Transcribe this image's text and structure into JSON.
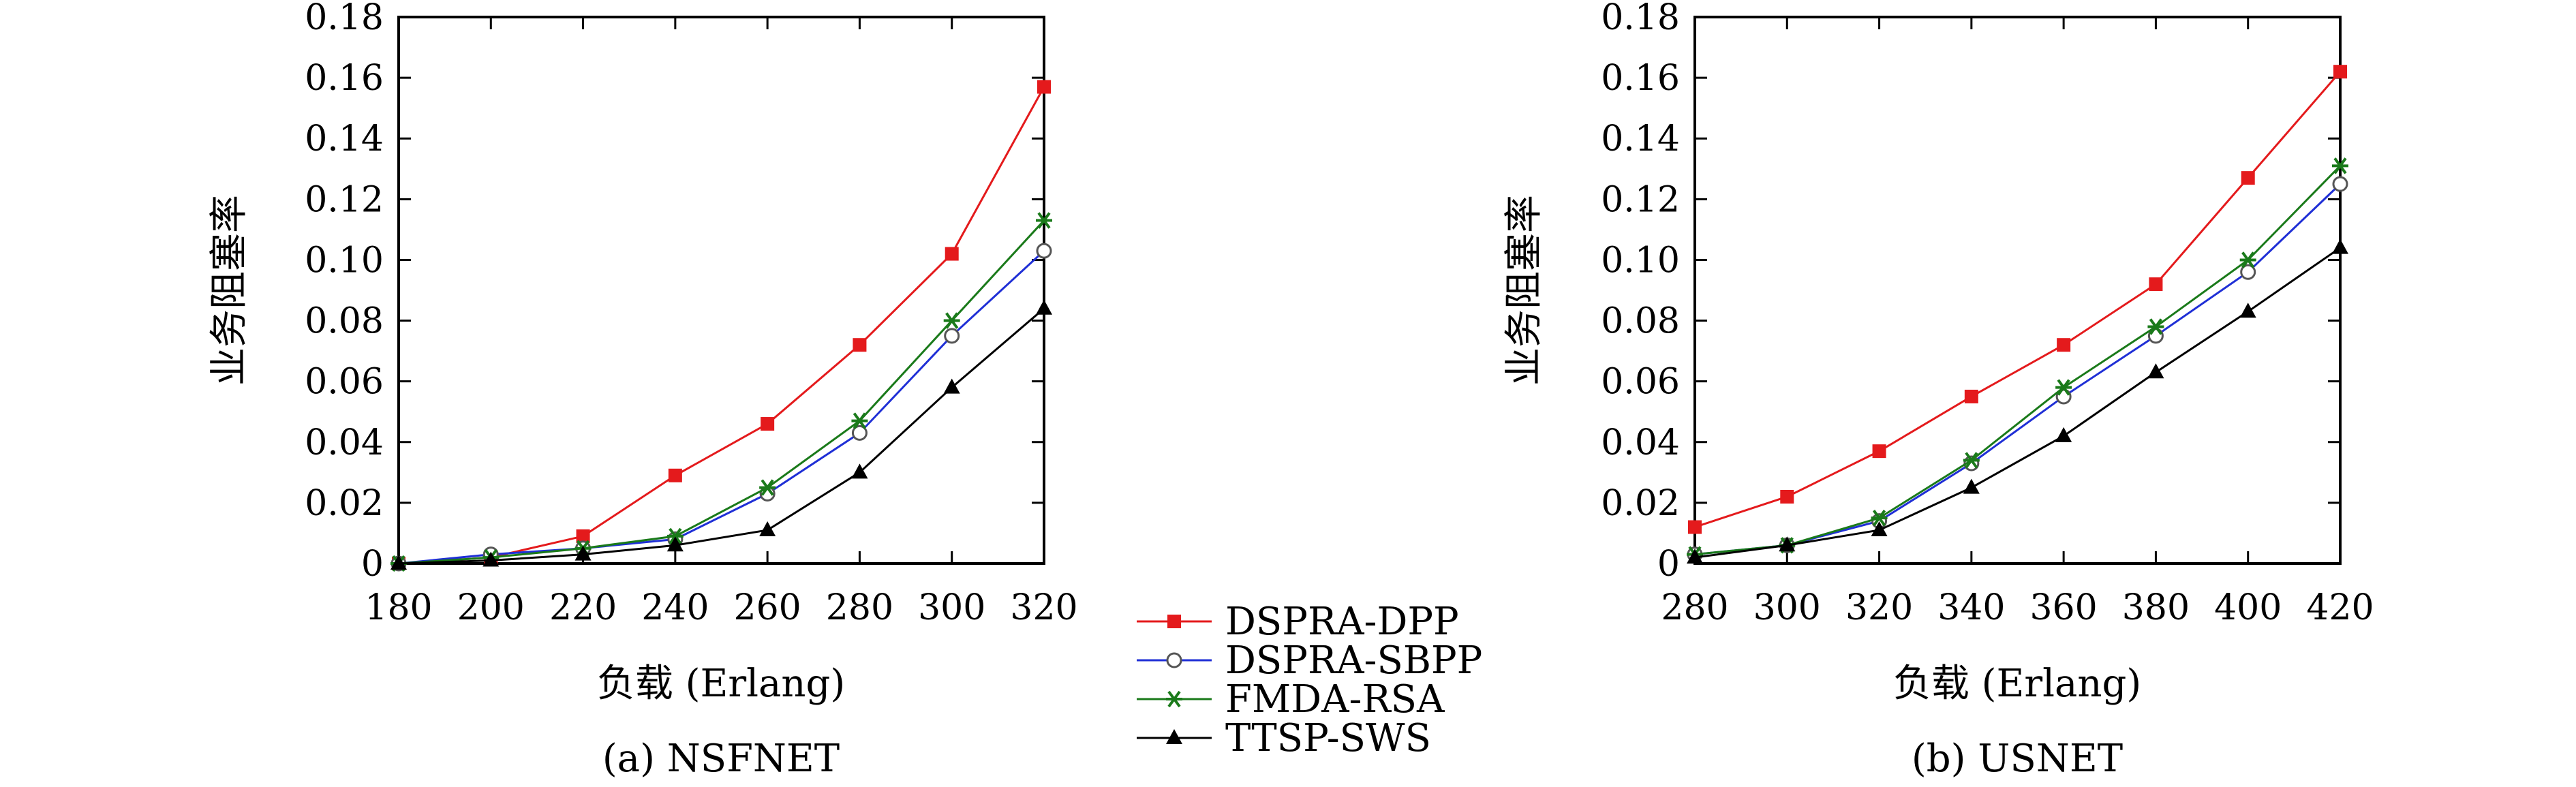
{
  "chart_data": [
    {
      "type": "line",
      "caption": "(a) NSFNET",
      "xlabel": "负载 (Erlang)",
      "ylabel": "业务阻塞率",
      "x": [
        180,
        200,
        220,
        240,
        260,
        280,
        300,
        320
      ],
      "xlim": [
        180,
        320
      ],
      "ylim": [
        0,
        0.18
      ],
      "yticks": [
        "0",
        "0.02",
        "0.04",
        "0.06",
        "0.08",
        "0.10",
        "0.12",
        "0.14",
        "0.16",
        "0.18"
      ],
      "ytick_values": [
        0,
        0.02,
        0.04,
        0.06,
        0.08,
        0.1,
        0.12,
        0.14,
        0.16,
        0.18
      ],
      "xticks": [
        "180",
        "200",
        "220",
        "240",
        "260",
        "280",
        "300",
        "320"
      ],
      "series": [
        {
          "name": "DSPRA-DPP",
          "values": [
            0,
            0.002,
            0.009,
            0.029,
            0.046,
            0.072,
            0.102,
            0.157
          ]
        },
        {
          "name": "DSPRA-SBPP",
          "values": [
            0,
            0.003,
            0.005,
            0.008,
            0.023,
            0.043,
            0.075,
            0.103
          ]
        },
        {
          "name": "FMDA-RSA",
          "values": [
            0,
            0.002,
            0.005,
            0.009,
            0.025,
            0.047,
            0.08,
            0.113
          ]
        },
        {
          "name": "TTSP-SWS",
          "values": [
            0,
            0.001,
            0.003,
            0.006,
            0.011,
            0.03,
            0.058,
            0.084
          ]
        }
      ]
    },
    {
      "type": "line",
      "caption": "(b) USNET",
      "xlabel": "负载 (Erlang)",
      "ylabel": "业务阻塞率",
      "x": [
        280,
        300,
        320,
        340,
        360,
        380,
        400,
        420
      ],
      "xlim": [
        280,
        420
      ],
      "ylim": [
        0,
        0.18
      ],
      "yticks": [
        "0",
        "0.02",
        "0.04",
        "0.06",
        "0.08",
        "0.10",
        "0.12",
        "0.14",
        "0.16",
        "0.18"
      ],
      "ytick_values": [
        0,
        0.02,
        0.04,
        0.06,
        0.08,
        0.1,
        0.12,
        0.14,
        0.16,
        0.18
      ],
      "xticks": [
        "280",
        "300",
        "320",
        "340",
        "360",
        "380",
        "400",
        "420"
      ],
      "series": [
        {
          "name": "DSPRA-DPP",
          "values": [
            0.012,
            0.022,
            0.037,
            0.055,
            0.072,
            0.092,
            0.127,
            0.162
          ]
        },
        {
          "name": "DSPRA-SBPP",
          "values": [
            0.003,
            0.006,
            0.014,
            0.033,
            0.055,
            0.075,
            0.096,
            0.125
          ]
        },
        {
          "name": "FMDA-RSA",
          "values": [
            0.003,
            0.006,
            0.015,
            0.034,
            0.058,
            0.078,
            0.1,
            0.131
          ]
        },
        {
          "name": "TTSP-SWS",
          "values": [
            0.002,
            0.006,
            0.011,
            0.025,
            0.042,
            0.063,
            0.083,
            0.104
          ]
        }
      ]
    }
  ],
  "legend": [
    {
      "name": "DSPRA-DPP",
      "color": "#e41a1c",
      "marker": "square-filled"
    },
    {
      "name": "DSPRA-SBPP",
      "color": "#1f2fd6",
      "marker": "circle-open"
    },
    {
      "name": "FMDA-RSA",
      "color": "#1a7a1a",
      "marker": "asterisk"
    },
    {
      "name": "TTSP-SWS",
      "color": "#000000",
      "marker": "triangle-filled"
    }
  ]
}
